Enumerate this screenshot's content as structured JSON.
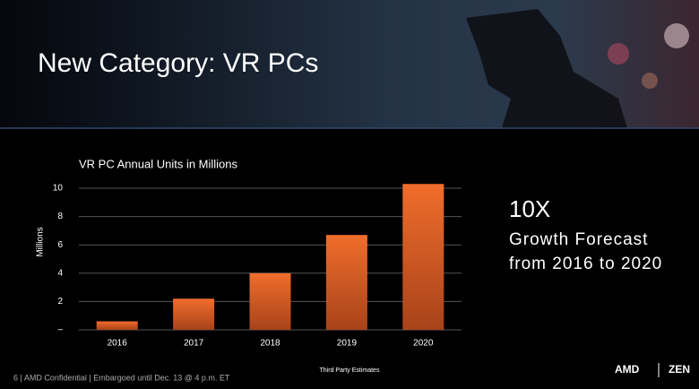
{
  "header": {
    "title": "New Category: VR PCs"
  },
  "chart_data": {
    "type": "bar",
    "title": "VR PC Annual Units in Millions",
    "y_label": "Millions",
    "categories": [
      "2016",
      "2017",
      "2018",
      "2019",
      "2020"
    ],
    "values": [
      0.6,
      2.2,
      4.0,
      6.7,
      10.3
    ],
    "color": "#e5652a",
    "ylim": [
      0,
      10
    ],
    "yticks": [
      {
        "value": 0,
        "label": "–"
      },
      2,
      4,
      6,
      8,
      10
    ],
    "grid": true,
    "source": "Third Party Estimates"
  },
  "callout": {
    "headline": "10X",
    "lines": [
      "Growth Forecast",
      "from 2016 to 2020"
    ]
  },
  "footer": {
    "note": "6 | AMD Confidential | Embargoed until Dec. 13 @ 4 p.m. ET",
    "logo": "AMD",
    "brand": "ZEN"
  }
}
